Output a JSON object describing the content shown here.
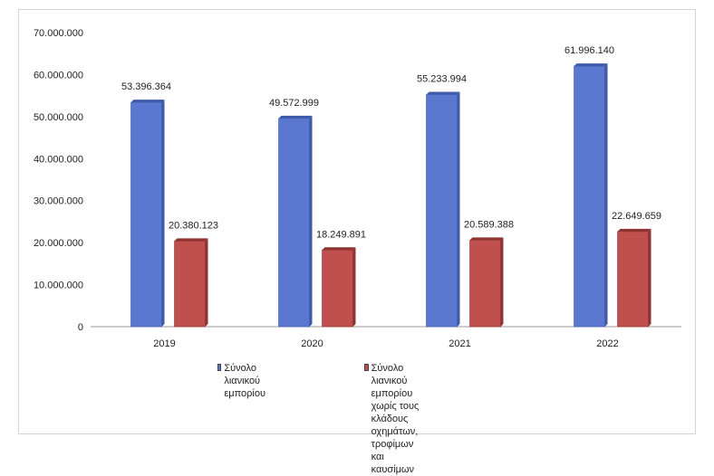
{
  "chart_data": {
    "type": "bar",
    "categories": [
      "2019",
      "2020",
      "2021",
      "2022"
    ],
    "series": [
      {
        "name": "Σύνολο λιανικού εμπορίου",
        "values": [
          53396364,
          49572999,
          55233994,
          61996140
        ],
        "labels": [
          "53.396.364",
          "49.572.999",
          "55.233.994",
          "61.996.140"
        ],
        "color": "#5b78d0"
      },
      {
        "name": "Σύνολο λιανικού εμπορίου χωρίς τους κλάδους οχημάτων, τροφίμων και καυσίμων",
        "values": [
          20380123,
          18249891,
          20589388,
          22649659
        ],
        "labels": [
          "20.380.123",
          "18.249.891",
          "20.589.388",
          "22.649.659"
        ],
        "color": "#c0504d"
      }
    ],
    "ylim": [
      0,
      70000000
    ],
    "yticks": [
      0,
      10000000,
      20000000,
      30000000,
      40000000,
      50000000,
      60000000,
      70000000
    ],
    "ytick_labels": [
      "0",
      "10.000.000",
      "20.000.000",
      "30.000.000",
      "40.000.000",
      "50.000.000",
      "60.000.000",
      "70.000.000"
    ],
    "grid": false,
    "legend_position": "bottom",
    "title": "",
    "xlabel": "",
    "ylabel": ""
  },
  "legend": {
    "item1": "Σύνολο λιανικού εμπορίου",
    "item2_lines": "Σύνολο λιανικού εμπορίου\nχωρίς τους\nκλάδους οχημάτων,\nτροφίμων και καυσίμων"
  }
}
